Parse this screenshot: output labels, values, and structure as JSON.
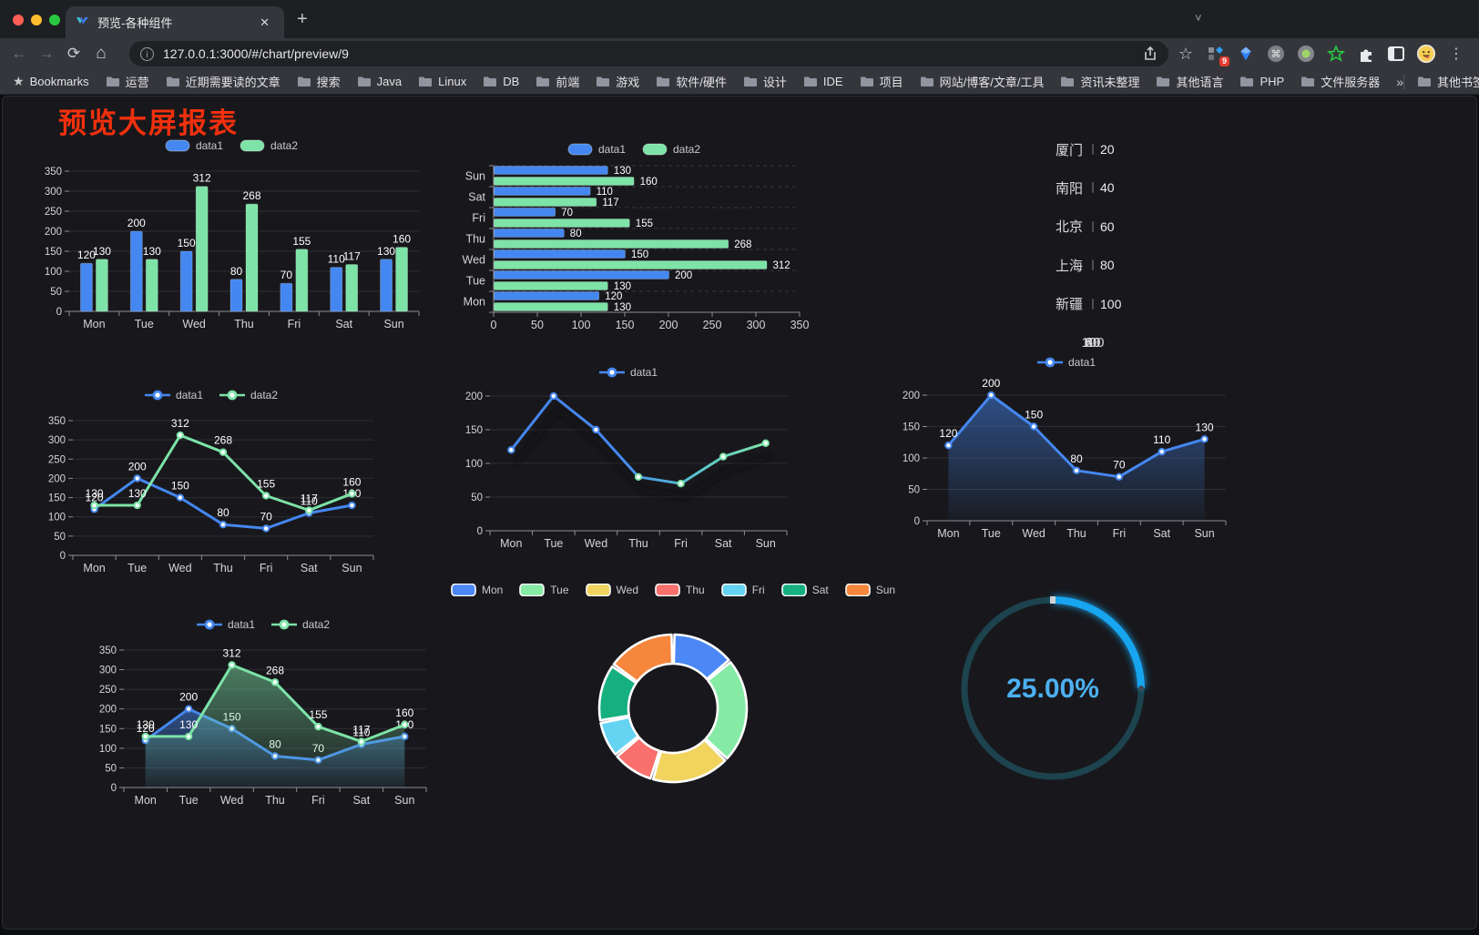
{
  "browser": {
    "tab": {
      "title": "预览-各种组件",
      "close": "✕",
      "new_tab": "+",
      "chevron": "˅"
    },
    "url": "127.0.0.1:3000/#/chart/preview/9",
    "info_glyph": "i",
    "back": "←",
    "forward": "→",
    "reload": "⟳",
    "home": "⌂",
    "menu_dots": "⋮",
    "extension_badge": "9",
    "bookmarks_label": "Bookmarks",
    "bookmarks": [
      "运营",
      "近期需要读的文章",
      "搜索",
      "Java",
      "Linux",
      "DB",
      "前端",
      "游戏",
      "软件/硬件",
      "设计",
      "IDE",
      "项目",
      "网站/博客/文章/工具",
      "资讯未整理",
      "其他语言",
      "PHP",
      "文件服务器"
    ],
    "bookmarks_overflow": "»",
    "other_bookmarks": "其他书签"
  },
  "page": {
    "title": "预览大屏报表"
  },
  "colors": {
    "data1": "#4587f0",
    "data2": "#7de3a7",
    "accent_red": "#f2300d"
  },
  "chart_data": [
    {
      "id": "bar-grouped",
      "type": "bar",
      "categories": [
        "Mon",
        "Tue",
        "Wed",
        "Thu",
        "Fri",
        "Sat",
        "Sun"
      ],
      "ylim": [
        0,
        350
      ],
      "ystep": 50,
      "legend": "bar",
      "grid": true,
      "series": [
        {
          "name": "data1",
          "color": "#4587f0",
          "values": [
            120,
            200,
            150,
            80,
            70,
            110,
            130
          ]
        },
        {
          "name": "data2",
          "color": "#7de3a7",
          "values": [
            130,
            130,
            312,
            268,
            155,
            117,
            160
          ]
        }
      ]
    },
    {
      "id": "hbar-grouped",
      "type": "hbar",
      "categories": [
        "Mon",
        "Tue",
        "Wed",
        "Thu",
        "Fri",
        "Sat",
        "Sun"
      ],
      "xlim": [
        0,
        350
      ],
      "xstep": 50,
      "legend": "bar",
      "grid": true,
      "series": [
        {
          "name": "data1",
          "color": "#4587f0",
          "values": [
            120,
            200,
            150,
            80,
            70,
            110,
            130
          ]
        },
        {
          "name": "data2",
          "color": "#7de3a7",
          "values": [
            130,
            130,
            312,
            268,
            155,
            117,
            160
          ]
        }
      ]
    },
    {
      "id": "progress-bars",
      "type": "progress",
      "xticks": [
        0,
        20,
        40,
        60,
        80,
        100
      ],
      "xlim": [
        0,
        100
      ],
      "items": [
        {
          "label": "厦门",
          "value": 20,
          "color": "#bfe49c"
        },
        {
          "label": "南阳",
          "value": 40,
          "color": "#50d5a2"
        },
        {
          "label": "北京",
          "value": 60,
          "color": "#8f9ce0"
        },
        {
          "label": "上海",
          "value": 80,
          "color": "#90e8e3"
        },
        {
          "label": "新疆",
          "value": 100,
          "color": "#33b3e3"
        }
      ]
    },
    {
      "id": "line-dual",
      "type": "line",
      "categories": [
        "Mon",
        "Tue",
        "Wed",
        "Thu",
        "Fri",
        "Sat",
        "Sun"
      ],
      "ylim": [
        0,
        350
      ],
      "ystep": 50,
      "labels": true,
      "legend": "line",
      "grid": true,
      "series": [
        {
          "name": "data1",
          "color": "#4587f0",
          "values": [
            120,
            200,
            150,
            80,
            70,
            110,
            130
          ]
        },
        {
          "name": "data2",
          "color": "#7de3a7",
          "values": [
            130,
            130,
            312,
            268,
            155,
            117,
            160
          ]
        }
      ]
    },
    {
      "id": "line-gradient",
      "type": "line",
      "categories": [
        "Mon",
        "Tue",
        "Wed",
        "Thu",
        "Fri",
        "Sat",
        "Sun"
      ],
      "ylim": [
        0,
        200
      ],
      "ystep": 50,
      "labels": false,
      "legend": "line",
      "grid": true,
      "shadow": true,
      "series": [
        {
          "name": "data1",
          "color": "#4587f0",
          "color2": "#7de3a7",
          "values": [
            120,
            200,
            150,
            80,
            70,
            110,
            130
          ]
        }
      ]
    },
    {
      "id": "area-single",
      "type": "line",
      "categories": [
        "Mon",
        "Tue",
        "Wed",
        "Thu",
        "Fri",
        "Sat",
        "Sun"
      ],
      "ylim": [
        0,
        200
      ],
      "ystep": 50,
      "labels": true,
      "legend": "line",
      "grid": true,
      "area": true,
      "series": [
        {
          "name": "data1",
          "color": "#4587f0",
          "values": [
            120,
            200,
            150,
            80,
            70,
            110,
            130
          ]
        }
      ]
    },
    {
      "id": "area-dual",
      "type": "line",
      "categories": [
        "Mon",
        "Tue",
        "Wed",
        "Thu",
        "Fri",
        "Sat",
        "Sun"
      ],
      "ylim": [
        0,
        350
      ],
      "ystep": 50,
      "labels": true,
      "legend": "line",
      "grid": true,
      "area": true,
      "series": [
        {
          "name": "data1",
          "color": "#4587f0",
          "values": [
            120,
            200,
            150,
            80,
            70,
            110,
            130
          ]
        },
        {
          "name": "data2",
          "color": "#7de3a7",
          "values": [
            130,
            130,
            312,
            268,
            155,
            117,
            160
          ]
        }
      ]
    },
    {
      "id": "donut",
      "type": "pie",
      "legend": "pie",
      "labels": [
        "Mon",
        "Tue",
        "Wed",
        "Thu",
        "Fri",
        "Sat",
        "Sun"
      ],
      "values": [
        120,
        200,
        150,
        80,
        70,
        110,
        130
      ],
      "colors": [
        "#4b87f5",
        "#86eba4",
        "#f0d45e",
        "#f9706c",
        "#65d3f2",
        "#16b07f",
        "#f5863c"
      ]
    },
    {
      "id": "gauge",
      "type": "gauge",
      "value": 25,
      "text": "25.00%",
      "color": "#18a5f0",
      "track": "#1c434e",
      "text_color": "#4cb0f0"
    }
  ]
}
